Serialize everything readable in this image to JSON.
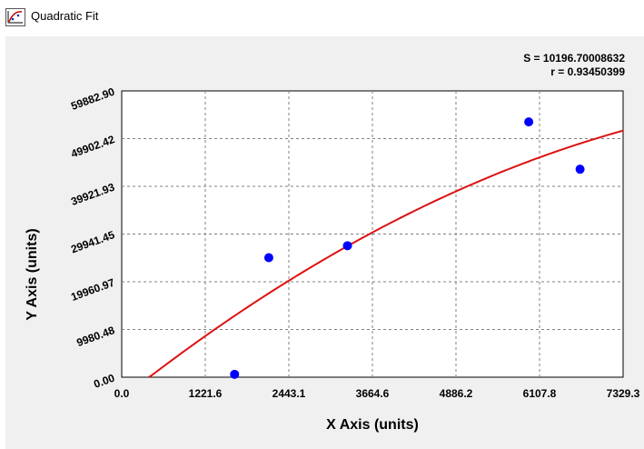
{
  "window": {
    "title": "Quadratic Fit",
    "icon": "chart-app-icon"
  },
  "chart_data": {
    "type": "scatter",
    "title": "",
    "xlabel": "X Axis (units)",
    "ylabel": "Y Axis (units)",
    "xlim": [
      0.0,
      7329.3
    ],
    "ylim": [
      0.0,
      59882.9
    ],
    "x_ticks": [
      "0.0",
      "1221.6",
      "2443.1",
      "3664.6",
      "4886.2",
      "6107.8",
      "7329.3"
    ],
    "y_ticks": [
      "0.00",
      "9980.48",
      "19960.97",
      "29941.45",
      "39921.93",
      "49902.42",
      "59882.90"
    ],
    "grid": true,
    "stats": {
      "s_text": "S = 10196.70008632",
      "r_text": "r = 0.93450399"
    },
    "series": [
      {
        "kind": "points",
        "color": "#0000ff",
        "x": [
          1650,
          2150,
          3300,
          5950,
          6700
        ],
        "y": [
          600,
          25000,
          27500,
          53400,
          43500
        ]
      }
    ],
    "fit": {
      "kind": "quadratic",
      "color": "#dd1111",
      "coefficients": {
        "a": -0.000501,
        "b": 11.32,
        "c": -4480
      },
      "x_start": 398,
      "x_end": 7329.3
    }
  }
}
